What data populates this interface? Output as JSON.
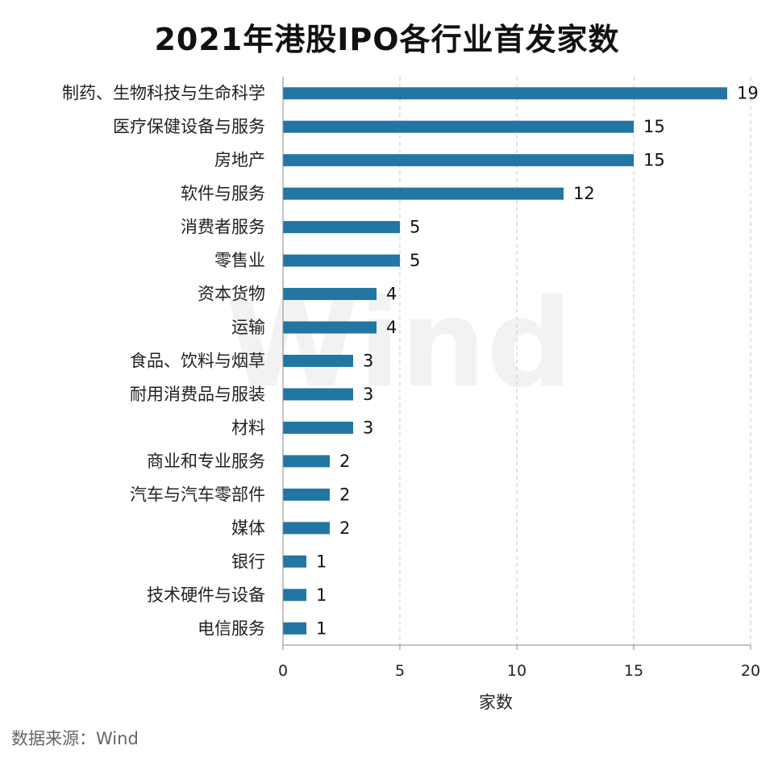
{
  "chart_data": {
    "type": "bar",
    "orientation": "horizontal",
    "title": "2021年港股IPO各行业首发家数",
    "categories": [
      "制药、生物科技与生命科学",
      "医疗保健设备与服务",
      "房地产",
      "软件与服务",
      "消费者服务",
      "零售业",
      "资本货物",
      "运输",
      "食品、饮料与烟草",
      "耐用消费品与服装",
      "材料",
      "商业和专业服务",
      "汽车与汽车零部件",
      "媒体",
      "银行",
      "技术硬件与设备",
      "电信服务"
    ],
    "values": [
      19,
      15,
      15,
      12,
      5,
      5,
      4,
      4,
      3,
      3,
      3,
      2,
      2,
      2,
      1,
      1,
      1
    ],
    "xlabel": "家数",
    "xlim": [
      0,
      20
    ],
    "xticks": [
      0,
      5,
      10,
      15,
      20
    ],
    "grid": "vertical dashed",
    "bar_color": "#2276a3",
    "watermark": "Wind"
  },
  "source": "数据来源：Wind"
}
